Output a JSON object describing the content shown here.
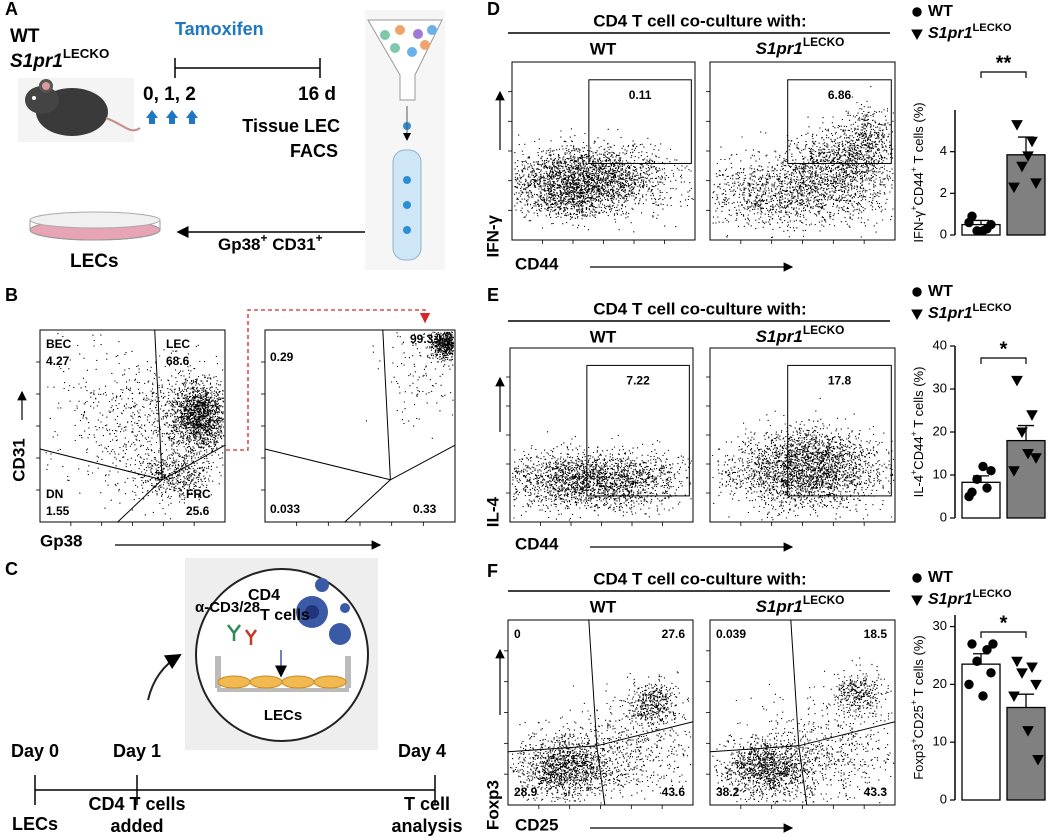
{
  "panel_labels": [
    "A",
    "B",
    "C",
    "D",
    "E",
    "F"
  ],
  "panel_a": {
    "wt": "WT",
    "ko": "S1pr1",
    "ko_sup": "LECKO",
    "treatment": "Tamoxifen",
    "injection_days": "0, 1, 2",
    "end_day": "16 d",
    "sort_line1": "Tissue LEC",
    "sort_line2": "FACS",
    "gate_1": "Gp38",
    "gate_1_sup": "+",
    "gate_2": " CD31",
    "gate_2_sup": "+",
    "product": "LECs"
  },
  "panel_b": {
    "x_label": "Gp38",
    "y_label": "CD31",
    "plot_1": {
      "gates": [
        {
          "name": "BEC",
          "value": 4.27
        },
        {
          "name": "LEC",
          "value": 68.6
        },
        {
          "name": "DN",
          "value": 1.55
        },
        {
          "name": "FRC",
          "value": 25.6
        }
      ]
    },
    "plot_2": {
      "values": [
        0.29,
        99.3,
        0.033,
        0.33
      ]
    }
  },
  "panel_c": {
    "stimulus": "α-CD3/28",
    "cells_line1": "CD4",
    "cells_line2": "T cells",
    "layer": "LECs",
    "timeline": [
      {
        "day": "Day 0",
        "event": [
          "LECs"
        ]
      },
      {
        "day": "Day 1",
        "event": [
          "CD4 T cells",
          "added"
        ]
      },
      {
        "day": "Day 4",
        "event": [
          "T cell",
          "analysis"
        ]
      }
    ]
  },
  "flow_panels": [
    {
      "title": "CD4 T cell co-culture with:",
      "col_wt": "WT",
      "col_ko": "S1pr1",
      "col_ko_sup": "LECKO",
      "y_label": "IFN-γ",
      "x_label": "CD44",
      "gate_values": [
        0.11,
        6.86
      ]
    },
    {
      "title": "CD4 T cell co-culture with:",
      "col_wt": "WT",
      "col_ko": "S1pr1",
      "col_ko_sup": "LECKO",
      "y_label": "IL-4",
      "x_label": "CD44",
      "gate_values": [
        7.22,
        17.8
      ]
    },
    {
      "title": "CD4 T cell co-culture with:",
      "col_wt": "WT",
      "col_ko": "S1pr1",
      "col_ko_sup": "LECKO",
      "y_label": "Foxp3",
      "x_label": "CD25",
      "quadrants": [
        [
          0,
          27.6,
          28.9,
          43.6
        ],
        [
          0.039,
          18.5,
          38.2,
          43.3
        ]
      ]
    }
  ],
  "chart_data": [
    {
      "type": "bar",
      "y_label": [
        "IFN-γ",
        "+",
        "CD44",
        "+",
        " T cells (%)"
      ],
      "ylim": [
        0,
        6
      ],
      "yticks": [
        0,
        2,
        4
      ],
      "significance": "**",
      "series": [
        {
          "name": "WT",
          "color": "#ffffff",
          "marker": "circle",
          "values": [
            0.5
          ],
          "errors": [
            0.2
          ],
          "points": [
            0.9,
            0.3,
            0.2,
            0.5,
            0.6,
            0.2
          ]
        },
        {
          "name": "S1pr1",
          "name_sup": "LECKO",
          "color": "#808080",
          "marker": "triangle",
          "values": [
            3.85
          ],
          "errors": [
            0.85
          ],
          "points": [
            5.3,
            4.5,
            3.3,
            2.5,
            2.3,
            3.8
          ]
        }
      ]
    },
    {
      "type": "bar",
      "y_label": [
        "IL-4",
        "+",
        "CD44",
        "+",
        " T cells (%)"
      ],
      "ylim": [
        0,
        40
      ],
      "yticks": [
        0,
        10,
        20,
        30,
        40
      ],
      "significance": "*",
      "series": [
        {
          "name": "WT",
          "color": "#ffffff",
          "marker": "circle",
          "values": [
            8.3
          ],
          "errors": [
            1.5
          ],
          "points": [
            6,
            7,
            9,
            11,
            5,
            12
          ]
        },
        {
          "name": "S1pr1",
          "name_sup": "LECKO",
          "color": "#808080",
          "marker": "triangle",
          "values": [
            18
          ],
          "errors": [
            3.5
          ],
          "points": [
            32,
            24,
            20,
            14,
            11,
            15
          ]
        }
      ]
    },
    {
      "type": "bar",
      "y_label": [
        "Foxp3",
        "+",
        "CD25",
        "+",
        " T cells (%)"
      ],
      "ylim": [
        0,
        32
      ],
      "yticks": [
        0,
        10,
        20,
        30
      ],
      "significance": "*",
      "series": [
        {
          "name": "WT",
          "color": "#ffffff",
          "marker": "circle",
          "values": [
            23.5
          ],
          "errors": [
            1.8
          ],
          "points": [
            27,
            26,
            24,
            22,
            20,
            18,
            27
          ]
        },
        {
          "name": "S1pr1",
          "name_sup": "LECKO",
          "color": "#808080",
          "marker": "triangle",
          "values": [
            16
          ],
          "errors": [
            2.3
          ],
          "points": [
            24,
            23,
            22,
            20,
            18,
            12,
            7
          ]
        }
      ]
    }
  ]
}
